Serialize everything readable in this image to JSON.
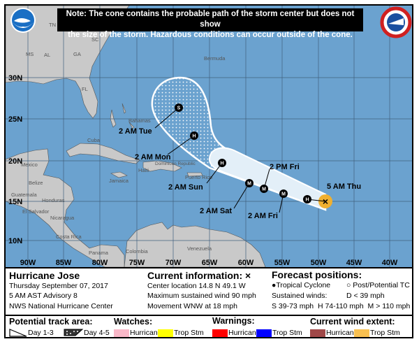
{
  "note": {
    "line1": "Note: The cone contains the probable path of the storm center but does not show",
    "line2": "the size of the storm. Hazardous conditions can occur outside of the cone."
  },
  "logos": {
    "left": "NOAA",
    "right": "National Weather Service"
  },
  "map": {
    "lat_labels": [
      "30N",
      "25N",
      "20N",
      "15N",
      "10N"
    ],
    "lon_labels": [
      "90W",
      "85W",
      "80W",
      "75W",
      "70W",
      "65W",
      "60W",
      "55W",
      "50W",
      "45W",
      "40W"
    ],
    "places": [
      "TN",
      "SC",
      "MS",
      "AL",
      "GA",
      "FL",
      "Bermuda",
      "Bahamas",
      "Cuba",
      "Mexico",
      "Belize",
      "Guatemala",
      "Honduras",
      "El Salvador",
      "Nicaragua",
      "Costa Rica",
      "Panama",
      "Jamaica",
      "Haiti",
      "Dominican Republic",
      "Puerto Rico",
      "Colombia",
      "Venezuela"
    ],
    "track_labels": [
      "2 AM Tue",
      "2 AM Mon",
      "2 AM Sun",
      "2 AM Sat",
      "2 AM Fri",
      "2 PM Fri",
      "5 AM Thu"
    ],
    "point_codes": [
      "S",
      "H",
      "H",
      "M",
      "M",
      "M",
      "H"
    ],
    "colors": {
      "ocean": "#6ba2cf",
      "land": "#c9c9c9",
      "cone_day13": "#e3eff8",
      "current_wind": "#f0b030"
    }
  },
  "info": {
    "storm_name": "Hurricane Jose",
    "date": "Thursday September 07, 2017",
    "advisory": "5 AM AST Advisory 8",
    "center": "NWS National Hurricane Center",
    "current_title": "Current information: ×",
    "location": "Center location 14.8 N 49.1 W",
    "max_wind": "Maximum sustained wind 90 mph",
    "movement": "Movement WNW at 18 mph",
    "forecast_title": "Forecast positions:",
    "tropical_cyclone": "Tropical Cyclone",
    "post_tc": "Post/Potential TC",
    "sustained_winds": "Sustained winds:",
    "d_def": "D < 39 mph",
    "shm_def": "S 39-73 mph  H 74-110 mph  M > 110 mph"
  },
  "legend": {
    "track_title": "Potential track area:",
    "day13": "Day 1-3",
    "day45": "Day 4-5",
    "watches_title": "Watches:",
    "warnings_title": "Warnings:",
    "wind_title": "Current wind extent:",
    "hurricane": "Hurricane",
    "trop_stm": "Trop Stm",
    "colors": {
      "watch_hurricane": "#f9b8c8",
      "watch_trop": "#ffff00",
      "warn_hurricane": "#ff0000",
      "warn_trop": "#0000ff",
      "wind_hurricane": "#a04848",
      "wind_trop": "#f8c050"
    }
  }
}
